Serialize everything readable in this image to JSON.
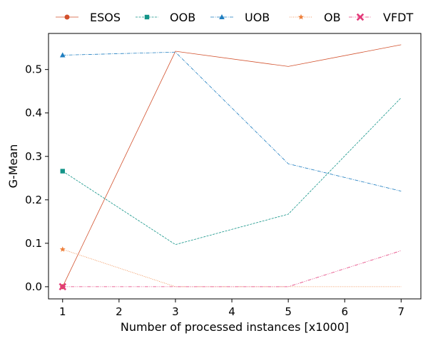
{
  "chart_data": {
    "type": "line",
    "title": "",
    "xlabel": "Number of processed instances [x1000]",
    "ylabel": "G-Mean",
    "x": [
      1,
      3,
      5,
      7
    ],
    "x_ticks": [
      1,
      2,
      3,
      4,
      5,
      6,
      7
    ],
    "x_tick_labels": [
      "1",
      "2",
      "3",
      "4",
      "5",
      "6",
      "7"
    ],
    "xlim": [
      0.75,
      7.35
    ],
    "y_ticks": [
      0.0,
      0.1,
      0.2,
      0.3,
      0.4,
      0.5
    ],
    "y_tick_labels": [
      "0.0",
      "0.1",
      "0.2",
      "0.3",
      "0.4",
      "0.5"
    ],
    "ylim": [
      -0.028,
      0.583
    ],
    "grid": false,
    "legend_position": "top, outside, single row",
    "series": [
      {
        "name": "ESOS",
        "values": [
          0.0,
          0.542,
          0.507,
          0.557
        ],
        "color": "#d2502c",
        "marker": "circle",
        "dash": "solid"
      },
      {
        "name": "OOB",
        "values": [
          0.266,
          0.097,
          0.167,
          0.435
        ],
        "color": "#139488",
        "marker": "square",
        "dash": "dashed"
      },
      {
        "name": "UOB",
        "values": [
          0.533,
          0.54,
          0.283,
          0.22
        ],
        "color": "#1f7ec0",
        "marker": "triangle",
        "dash": "dashdot"
      },
      {
        "name": "OB",
        "values": [
          0.086,
          0.0,
          0.0,
          0.0
        ],
        "color": "#ee7f3a",
        "marker": "star",
        "dash": "dotted"
      },
      {
        "name": "VFDT",
        "values": [
          0.0,
          0.0,
          0.0,
          0.083
        ],
        "color": "#e33b7a",
        "marker": "x",
        "dash": "dashdotdot"
      }
    ]
  }
}
